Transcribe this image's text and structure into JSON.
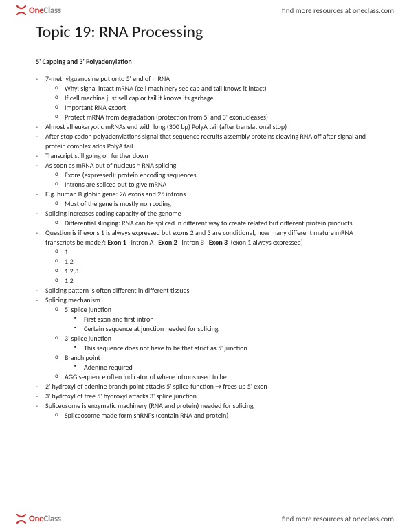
{
  "brand": {
    "name_part1": "One",
    "name_part2": "Class",
    "link_text": "find more resources at oneclass.com",
    "logo_red": "#d32f2f",
    "logo_gray": "#888888"
  },
  "doc": {
    "title": "Topic 19: RNA Processing",
    "section": "5' Capping  and 3' Polyadenylation",
    "items": [
      {
        "t": "7-methylguanosine put onto 5' end of mRNA",
        "c": [
          {
            "t": "Why: signal intact mRNA (cell machinery see cap and tail knows it intact)"
          },
          {
            "t": "If cell machine just sell cap or tail it knows its garbage"
          },
          {
            "t": "Important RNA export"
          },
          {
            "t": "Protect mRNA from degradation (protection from 5' and 3' exonucleases)"
          }
        ]
      },
      {
        "t": "Almost all eukaryotic mRNAs end with long (300 bp) PolyA tail (after translational stop)"
      },
      {
        "t": "After stop codon polyadenylations signal that sequence recruits assembly proteins cleaving RNA off after signal and protein complex adds PolyA tail"
      },
      {
        "t": "Transcript still going on further down"
      },
      {
        "t": "As soon as mRNA out of nucleus = RNA splicing",
        "c": [
          {
            "t": "Exons (expressed): protein encoding sequences"
          },
          {
            "t": "Introns are spliced out to give mRNA"
          }
        ]
      },
      {
        "t": "E.g. human B globin gene: 26 exons and 25 introns",
        "c": [
          {
            "t": "Most of the gene is mostly non coding"
          }
        ]
      },
      {
        "t": "Splicing increases coding capacity of the genome",
        "c": [
          {
            "t": "Differential slinging: RNA can be spliced in different way to create related but different protein products"
          }
        ]
      },
      {
        "html": "Question is if exons 1 is always expressed but exons 2 and 3 are conditional, how many different mature mRNA transcripts be made?: <span class=\"b\">Exon 1</span>&nbsp;&nbsp;&nbsp;Intron A&nbsp;&nbsp;&nbsp;<span class=\"b\">Exon 2</span>&nbsp;&nbsp;&nbsp;Intron B&nbsp;&nbsp;&nbsp;<span class=\"b\">Exon 3</span>&nbsp;&nbsp;(exon 1 always expressed)",
        "c": [
          {
            "t": "1"
          },
          {
            "t": "1,2"
          },
          {
            "t": "1,2,3"
          },
          {
            "t": "1,2"
          }
        ]
      },
      {
        "t": "Splicing pattern is often different in different tissues"
      },
      {
        "t": "Splicing mechanism",
        "c": [
          {
            "t": "5' splice junction",
            "c": [
              {
                "t": "First exon and first intron"
              },
              {
                "t": "Certain sequence at junction needed for splicing"
              }
            ]
          },
          {
            "t": "3' splice junction",
            "c": [
              {
                "t": "This sequence does not have to be that strict as 5' junction"
              }
            ]
          },
          {
            "t": "Branch point",
            "c": [
              {
                "t": "Adenine required"
              }
            ]
          },
          {
            "t": "AGG sequence often indicator of where introns used to be"
          }
        ]
      },
      {
        "t": "2' hydroxyl of adenine branch point attacks 5' splice function → frees up 5' exon"
      },
      {
        "t": "3' hydroxyl of free 5' hydroxyl attacks 3' splice junction"
      },
      {
        "t": "Spliceosome is enzymatic machinery (RNA and protein) needed for splicing",
        "c": [
          {
            "t": "Spliceosome made form snRNPs (contain RNA and protein)"
          }
        ]
      }
    ]
  }
}
